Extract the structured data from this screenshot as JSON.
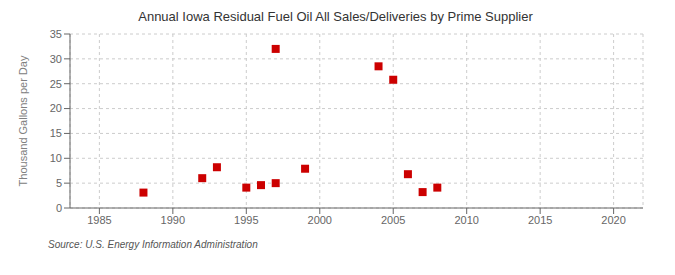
{
  "chart_data": {
    "type": "scatter",
    "title": "Annual Iowa Residual Fuel Oil All Sales/Deliveries by Prime Supplier",
    "ylabel": "Thousand Gallons per Day",
    "annotations": [
      "Source: U.S. Energy Information Administration"
    ],
    "x": [
      1988,
      1992,
      1993,
      1995,
      1996,
      1997,
      1997,
      1999,
      2004,
      2005,
      2006,
      2007,
      2008
    ],
    "values": [
      3.1,
      6.0,
      8.2,
      4.1,
      4.6,
      5.0,
      32.0,
      7.9,
      28.5,
      25.8,
      6.8,
      3.2,
      4.1
    ],
    "color": "#cc0000",
    "marker": "square",
    "xlim": [
      1983,
      2022
    ],
    "ylim": [
      0,
      35
    ],
    "xticks": [
      1985,
      1990,
      1995,
      2000,
      2005,
      2010,
      2015,
      2020
    ],
    "yticks": [
      0,
      5,
      10,
      15,
      20,
      25,
      30,
      35
    ],
    "grid": true
  }
}
